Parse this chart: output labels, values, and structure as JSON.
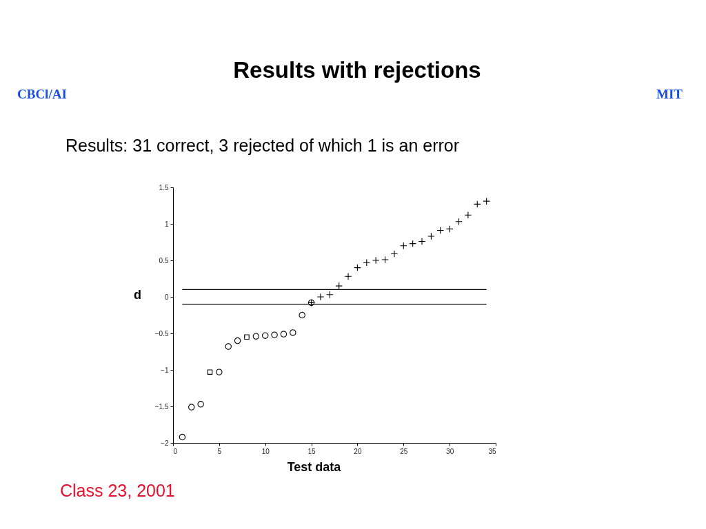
{
  "chart_data": {
    "type": "scatter",
    "title": "Results with rejections",
    "subtitle": "Results: 31 correct, 3 rejected of which 1 is an error",
    "xlabel": "Test data",
    "ylabel": "d",
    "annotations": [
      "CBCl/AI",
      "MIT",
      "Class 23, 2001"
    ],
    "xlim": [
      0,
      35
    ],
    "ylim": [
      -2,
      1.5
    ],
    "xticks": [
      0,
      5,
      10,
      15,
      20,
      25,
      30,
      35
    ],
    "yticks": [
      -2,
      -1.5,
      -1,
      -0.5,
      0,
      0.5,
      1,
      1.5
    ],
    "series": [
      {
        "color": "#000000",
        "marker": "circle",
        "x": [
          1,
          2,
          3,
          5,
          6,
          7,
          9,
          10,
          11,
          12,
          13,
          14,
          15
        ],
        "values": [
          -1.92,
          -1.51,
          -1.47,
          -1.03,
          -0.68,
          -0.6,
          -0.54,
          -0.53,
          -0.52,
          -0.51,
          -0.49,
          -0.25,
          -0.08
        ]
      },
      {
        "color": "#000000",
        "marker": "square",
        "x": [
          4,
          8
        ],
        "values": [
          -1.03,
          -0.55
        ]
      },
      {
        "color": "#000000",
        "marker": "cross",
        "x": [
          15,
          16,
          17,
          18,
          19,
          20,
          21,
          22,
          23,
          24,
          25,
          26,
          27,
          28,
          29,
          30,
          31,
          32,
          33,
          34
        ],
        "values": [
          -0.08,
          0.0,
          0.03,
          0.15,
          0.28,
          0.4,
          0.47,
          0.5,
          0.51,
          0.59,
          0.7,
          0.73,
          0.76,
          0.83,
          0.91,
          0.93,
          1.03,
          1.12,
          1.27,
          1.31
        ]
      }
    ],
    "ref_lines": [
      {
        "axis": "y",
        "value": 0.1,
        "color": "#000000"
      },
      {
        "axis": "y",
        "value": -0.1,
        "color": "#000000"
      }
    ]
  }
}
